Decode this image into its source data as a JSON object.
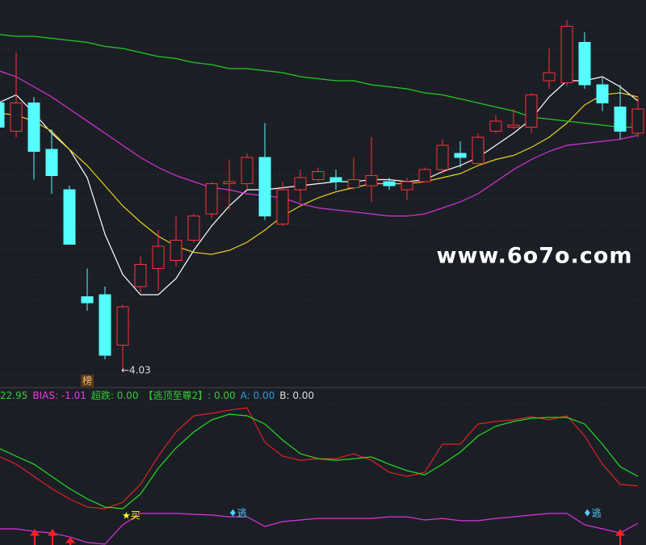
{
  "chart_data": [
    {
      "type": "candlestick",
      "open": [
        5.35,
        5.21,
        5.35,
        5.12,
        4.92,
        4.39,
        4.4,
        4.15,
        4.44,
        4.53,
        4.57,
        4.67,
        4.8,
        4.95,
        4.95,
        5.08,
        4.75,
        4.92,
        4.97,
        4.98,
        4.93,
        4.94,
        4.96,
        4.92,
        4.96,
        5.02,
        5.1,
        5.05,
        5.21,
        5.23,
        5.23,
        5.46,
        5.45,
        5.65,
        5.44,
        5.33,
        5.2
      ],
      "close": [
        5.23,
        5.35,
        5.11,
        4.99,
        4.65,
        4.36,
        4.1,
        4.34,
        4.55,
        4.64,
        4.67,
        4.79,
        4.95,
        4.96,
        5.08,
        4.79,
        4.92,
        4.98,
        5.01,
        4.96,
        4.97,
        4.99,
        4.94,
        4.96,
        5.02,
        5.14,
        5.08,
        5.18,
        5.26,
        5.24,
        5.39,
        5.5,
        5.73,
        5.44,
        5.35,
        5.21,
        5.32
      ],
      "high": [
        5.38,
        5.6,
        5.38,
        5.22,
        4.94,
        4.53,
        4.44,
        4.35,
        4.59,
        4.72,
        4.79,
        4.8,
        4.96,
        5.07,
        5.1,
        5.25,
        4.96,
        5.02,
        5.03,
        5.02,
        5.08,
        5.18,
        4.98,
        4.98,
        5.03,
        5.17,
        5.16,
        5.2,
        5.29,
        5.32,
        5.4,
        5.62,
        5.76,
        5.7,
        5.48,
        5.44,
        5.38
      ],
      "low": [
        5.22,
        5.18,
        4.97,
        4.9,
        4.65,
        4.32,
        4.08,
        4.03,
        4.41,
        4.42,
        4.54,
        4.66,
        4.78,
        4.82,
        4.92,
        4.77,
        4.74,
        4.86,
        4.96,
        4.92,
        4.92,
        4.86,
        4.92,
        4.87,
        4.96,
        5.0,
        5.03,
        5.04,
        5.2,
        5.22,
        5.2,
        5.42,
        5.43,
        5.42,
        5.31,
        5.17,
        5.18
      ],
      "low_label": "←4.03",
      "tag": "榜",
      "watermark": "www.6o7o.com",
      "up_color": "#ff3333",
      "down_color": "#54ffff",
      "ylim": [
        3.94,
        5.86
      ],
      "series": [
        {
          "color": "#ffffff",
          "values": [
            5.35,
            5.39,
            5.3,
            5.2,
            5.12,
            4.98,
            4.7,
            4.5,
            4.4,
            4.4,
            4.48,
            4.62,
            4.74,
            4.84,
            4.92,
            4.92,
            4.93,
            4.94,
            4.95,
            4.96,
            4.96,
            4.97,
            4.97,
            4.96,
            4.97,
            5.01,
            5.04,
            5.08,
            5.14,
            5.2,
            5.27,
            5.38,
            5.46,
            5.46,
            5.48,
            5.43,
            5.36
          ]
        },
        {
          "color": "#e6d21e",
          "values": [
            5.3,
            5.29,
            5.26,
            5.21,
            5.12,
            5.04,
            4.94,
            4.84,
            4.76,
            4.69,
            4.64,
            4.61,
            4.6,
            4.62,
            4.66,
            4.72,
            4.79,
            4.84,
            4.88,
            4.91,
            4.93,
            4.95,
            4.95,
            4.95,
            4.96,
            4.98,
            5.0,
            5.04,
            5.07,
            5.09,
            5.13,
            5.18,
            5.25,
            5.34,
            5.39,
            5.4,
            5.38
          ]
        },
        {
          "color": "#d632d6",
          "values": [
            5.51,
            5.48,
            5.43,
            5.38,
            5.32,
            5.26,
            5.2,
            5.14,
            5.08,
            5.03,
            4.99,
            4.96,
            4.93,
            4.92,
            4.9,
            4.89,
            4.88,
            4.85,
            4.83,
            4.82,
            4.81,
            4.8,
            4.79,
            4.79,
            4.8,
            4.83,
            4.86,
            4.9,
            4.96,
            5.02,
            5.07,
            5.11,
            5.14,
            5.15,
            5.16,
            5.17,
            5.19
          ]
        },
        {
          "color": "#22cc22",
          "values": [
            5.69,
            5.68,
            5.68,
            5.67,
            5.66,
            5.65,
            5.63,
            5.62,
            5.6,
            5.58,
            5.57,
            5.55,
            5.54,
            5.52,
            5.52,
            5.51,
            5.5,
            5.48,
            5.47,
            5.46,
            5.46,
            5.44,
            5.43,
            5.42,
            5.4,
            5.39,
            5.37,
            5.35,
            5.33,
            5.31,
            5.28,
            5.27,
            5.26,
            5.25,
            5.24,
            5.23,
            5.23
          ]
        }
      ]
    },
    {
      "type": "line",
      "header": [
        {
          "text": "22.95",
          "color": "#33cc33"
        },
        {
          "text": "BIAS: -1.01",
          "color": "#e040e0"
        },
        {
          "text": "超跌: 0.00",
          "color": "#33cc33"
        },
        {
          "text": "【逃顶至尊2】: 0.00",
          "color": "#33cc33"
        },
        {
          "text": "A: 0.00",
          "color": "#3399dd"
        },
        {
          "text": "B: 0.00",
          "color": "#dddddd"
        }
      ],
      "signals": [
        "★买",
        "♦逃",
        "♦逃"
      ],
      "ylim": [
        0,
        100
      ],
      "series": [
        {
          "color": "#dd2222",
          "values": [
            61.1,
            55.6,
            47.2,
            38.9,
            31.7,
            26.1,
            25.0,
            29.4,
            41.7,
            61.1,
            77.8,
            88.9,
            90.6,
            92.8,
            94.4,
            70.6,
            61.1,
            58.3,
            59.4,
            59.4,
            62.8,
            58.3,
            50.0,
            47.2,
            50.0,
            69.4,
            69.4,
            83.3,
            85.0,
            86.1,
            88.3,
            86.1,
            88.9,
            75.0,
            55.6,
            41.7,
            40.6
          ]
        },
        {
          "color": "#22dd22",
          "values": [
            66.7,
            61.1,
            55.6,
            47.2,
            38.9,
            31.7,
            26.1,
            25.0,
            35.0,
            52.8,
            66.7,
            77.8,
            86.1,
            90.0,
            88.9,
            83.3,
            72.2,
            62.8,
            59.4,
            58.3,
            59.4,
            60.6,
            55.6,
            51.1,
            48.3,
            55.6,
            63.9,
            75.0,
            81.7,
            85.0,
            87.2,
            87.8,
            87.8,
            83.3,
            69.4,
            53.9,
            47.2
          ]
        },
        {
          "color": "#dd33dd",
          "values": [
            11.1,
            11.1,
            9.4,
            8.3,
            5.6,
            1.7,
            0.6,
            13.9,
            21.7,
            21.7,
            21.7,
            21.1,
            20.6,
            19.4,
            19.4,
            12.8,
            16.1,
            17.2,
            18.3,
            18.3,
            18.3,
            18.3,
            19.4,
            19.4,
            17.2,
            18.3,
            16.7,
            16.7,
            18.3,
            19.4,
            20.6,
            21.7,
            21.7,
            13.9,
            11.1,
            8.3,
            15.0
          ]
        }
      ]
    }
  ]
}
